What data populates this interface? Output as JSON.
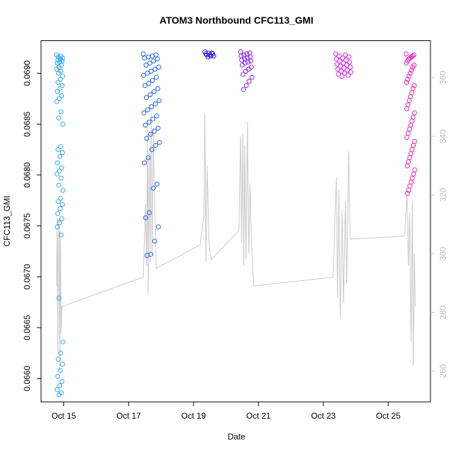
{
  "chart_data": {
    "type": "scatter",
    "title": "ATOM3 Northbound CFC113_GMI",
    "xlabel": "Date",
    "ylabel": "CFC113_GMI",
    "x_unit": "days in October",
    "xlim": [
      14.3,
      26.3
    ],
    "ylim": [
      0.06577,
      0.06932
    ],
    "y2lim": [
      249.5,
      372.6
    ],
    "x_ticks": [
      15,
      17,
      19,
      21,
      23,
      25
    ],
    "x_tick_labels": [
      "Oct 15",
      "Oct 17",
      "Oct 19",
      "Oct 21",
      "Oct 23",
      "Oct 25"
    ],
    "y_ticks": [
      0.066,
      0.0665,
      0.067,
      0.0675,
      0.068,
      0.0685,
      0.069
    ],
    "y_tick_labels": [
      "0.0660",
      "0.0665",
      "0.0670",
      "0.0675",
      "0.0680",
      "0.0685",
      "0.0690"
    ],
    "y2_ticks": [
      260,
      280,
      300,
      320,
      340,
      360
    ],
    "y2_tick_labels": [
      "260",
      "280",
      "300",
      "320",
      "340",
      "360"
    ],
    "colors": {
      "frame": "#000000",
      "aux_line": "#c8c8c8",
      "right_axis": "#bdbdbd"
    },
    "flights": [
      {
        "color": "#29a9f0",
        "x_range": [
          14.78,
          14.98
        ],
        "values": [
          0.06918,
          0.06917,
          0.06916,
          0.06915,
          0.06914,
          0.06913,
          0.06912,
          0.06911,
          0.0691,
          0.06908,
          0.06906,
          0.06904,
          0.06902,
          0.069,
          0.06897,
          0.06894,
          0.06891,
          0.06888,
          0.06885,
          0.06882,
          0.06878,
          0.06875,
          0.06872,
          0.06862,
          0.06856,
          0.0685,
          0.06828,
          0.06825,
          0.06822,
          0.06818,
          0.06812,
          0.06807,
          0.06804,
          0.06801,
          0.06797,
          0.0679,
          0.06785,
          0.06777,
          0.06774,
          0.06771,
          0.06767,
          0.06762,
          0.06757,
          0.06753,
          0.06749,
          0.06741,
          0.06679,
          0.06636,
          0.06625,
          0.06619,
          0.06614,
          0.06608,
          0.06602,
          0.06597,
          0.06593,
          0.06589,
          0.06586,
          0.06584
        ]
      },
      {
        "color": "#1f5fe8",
        "x_range": [
          17.45,
          17.95
        ],
        "values": [
          0.06919,
          0.06918,
          0.06917,
          0.06916,
          0.06915,
          0.06914,
          0.06912,
          0.0691,
          0.06908,
          0.06906,
          0.06904,
          0.06902,
          0.069,
          0.06898,
          0.06896,
          0.06893,
          0.0689,
          0.06888,
          0.06885,
          0.06882,
          0.06879,
          0.06876,
          0.06873,
          0.0687,
          0.06867,
          0.06864,
          0.06861,
          0.06858,
          0.06855,
          0.06852,
          0.06849,
          0.06846,
          0.06843,
          0.0684,
          0.06836,
          0.06832,
          0.06829,
          0.06825,
          0.06817,
          0.06812,
          0.06791,
          0.06787,
          0.06763,
          0.06758,
          0.06749,
          0.06735,
          0.06722,
          0.06721
        ]
      },
      {
        "color": "#2b1be6",
        "x_range": [
          19.35,
          19.62
        ],
        "values": [
          0.06921,
          0.0692,
          0.0692,
          0.06919,
          0.06919,
          0.06918,
          0.06918,
          0.06917,
          0.06917,
          0.06916
        ]
      },
      {
        "color": "#8a1ff0",
        "x_range": [
          20.45,
          20.8
        ],
        "values": [
          0.06921,
          0.0692,
          0.06919,
          0.06918,
          0.06917,
          0.06916,
          0.06915,
          0.06914,
          0.06913,
          0.06912,
          0.06911,
          0.0691,
          0.06908,
          0.06906,
          0.06904,
          0.06902,
          0.06899,
          0.06896,
          0.06892,
          0.06888,
          0.06884
        ]
      },
      {
        "color": "#d91ff0",
        "x_range": [
          23.38,
          23.85
        ],
        "values": [
          0.06919,
          0.06918,
          0.06917,
          0.06916,
          0.06915,
          0.06914,
          0.06913,
          0.06912,
          0.06911,
          0.0691,
          0.06909,
          0.06908,
          0.06907,
          0.06906,
          0.06905,
          0.06904,
          0.06903,
          0.06902,
          0.06901,
          0.069,
          0.06899,
          0.06898,
          0.06897
        ]
      },
      {
        "color": "#f01fc8",
        "x_range": [
          25.55,
          25.82
        ],
        "values": [
          0.06919,
          0.06918,
          0.06917,
          0.06916,
          0.06915,
          0.06914,
          0.06912,
          0.0691,
          0.06908,
          0.06906,
          0.06903,
          0.069,
          0.06897,
          0.06894,
          0.06891,
          0.06888,
          0.06885,
          0.06881,
          0.06877,
          0.06873,
          0.06869,
          0.06865,
          0.06861,
          0.06857,
          0.06853,
          0.06849,
          0.06845,
          0.06841,
          0.06837,
          0.06833,
          0.06829,
          0.06825,
          0.06821,
          0.06817,
          0.06813,
          0.06809,
          0.06805,
          0.06801,
          0.06797,
          0.06793,
          0.06789,
          0.06785,
          0.06782
        ]
      }
    ],
    "secondary_series": {
      "color": "#c8c8c8",
      "points": [
        [
          14.78,
          289
        ],
        [
          14.8,
          312
        ],
        [
          14.82,
          266
        ],
        [
          14.84,
          305
        ],
        [
          14.86,
          312
        ],
        [
          14.88,
          260
        ],
        [
          14.9,
          308
        ],
        [
          14.92,
          273
        ],
        [
          14.94,
          282
        ],
        [
          17.45,
          292
        ],
        [
          17.52,
          317
        ],
        [
          17.55,
          296
        ],
        [
          17.58,
          343
        ],
        [
          17.6,
          286
        ],
        [
          17.63,
          335
        ],
        [
          17.66,
          297
        ],
        [
          17.69,
          348
        ],
        [
          17.72,
          299
        ],
        [
          17.76,
          343
        ],
        [
          17.8,
          318
        ],
        [
          17.85,
          295
        ],
        [
          19.2,
          303
        ],
        [
          19.32,
          313
        ],
        [
          19.35,
          348
        ],
        [
          19.38,
          297
        ],
        [
          19.42,
          330
        ],
        [
          19.48,
          303
        ],
        [
          19.55,
          298
        ],
        [
          20.4,
          308
        ],
        [
          20.45,
          340
        ],
        [
          20.48,
          304
        ],
        [
          20.52,
          341
        ],
        [
          20.55,
          296
        ],
        [
          20.58,
          337
        ],
        [
          20.62,
          298
        ],
        [
          20.66,
          345
        ],
        [
          20.7,
          300
        ],
        [
          20.74,
          324
        ],
        [
          20.78,
          305
        ],
        [
          20.85,
          289
        ],
        [
          23.3,
          292
        ],
        [
          23.4,
          326
        ],
        [
          23.44,
          285
        ],
        [
          23.48,
          322
        ],
        [
          23.52,
          278
        ],
        [
          23.58,
          315
        ],
        [
          23.62,
          283
        ],
        [
          23.68,
          318
        ],
        [
          23.72,
          290
        ],
        [
          23.78,
          335
        ],
        [
          23.82,
          305
        ],
        [
          25.5,
          306
        ],
        [
          25.58,
          320
        ],
        [
          25.62,
          296
        ],
        [
          25.66,
          314
        ],
        [
          25.7,
          270
        ],
        [
          25.74,
          318
        ],
        [
          25.77,
          262
        ],
        [
          25.8,
          300
        ],
        [
          25.84,
          282
        ]
      ]
    }
  }
}
